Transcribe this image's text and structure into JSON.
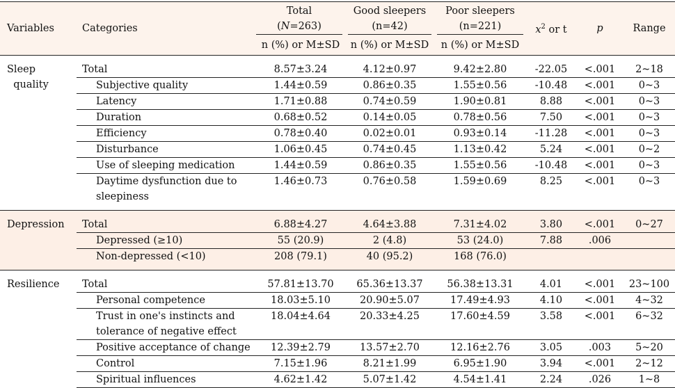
{
  "header": {
    "variables": "Variables",
    "categories": "Categories",
    "total": "Total",
    "total_n": "(N=263)",
    "good": "Good sleepers",
    "good_n": "(n=42)",
    "poor": "Poor sleepers",
    "poor_n": "(n=221)",
    "stat": "x2 or t",
    "p": "p",
    "range": "Range",
    "sub": "n (%) or M±SD"
  },
  "groups": [
    {
      "variable": "Sleep quality",
      "rows": [
        {
          "category": "Total",
          "total": "8.57±3.24",
          "good": "4.12±0.97",
          "poor": "9.42±2.80",
          "stat": "-22.05",
          "p": "<.001",
          "range": "2~18"
        },
        {
          "category": "Subjective quality",
          "total": "1.44±0.59",
          "good": "0.86±0.35",
          "poor": "1.55±0.56",
          "stat": "-10.48",
          "p": "<.001",
          "range": "0~3"
        },
        {
          "category": "Latency",
          "total": "1.71±0.88",
          "good": "0.74±0.59",
          "poor": "1.90±0.81",
          "stat": "8.88",
          "p": "<.001",
          "range": "0~3"
        },
        {
          "category": "Duration",
          "total": "0.68±0.52",
          "good": "0.14±0.05",
          "poor": "0.78±0.56",
          "stat": "7.50",
          "p": "<.001",
          "range": "0~3"
        },
        {
          "category": "Efficiency",
          "total": "0.78±0.40",
          "good": "0.02±0.01",
          "poor": "0.93±0.14",
          "stat": "-11.28",
          "p": "<.001",
          "range": "0~3"
        },
        {
          "category": "Disturbance",
          "total": "1.06±0.45",
          "good": "0.74±0.45",
          "poor": "1.13±0.42",
          "stat": "5.24",
          "p": "<.001",
          "range": "0~2"
        },
        {
          "category": "Use of sleeping medication",
          "total": "1.44±0.59",
          "good": "0.86±0.35",
          "poor": "1.55±0.56",
          "stat": "-10.48",
          "p": "<.001",
          "range": "0~3"
        },
        {
          "category": "Daytime dysfunction due to sleepiness",
          "total": "1.46±0.73",
          "good": "0.76±0.58",
          "poor": "1.59±0.69",
          "stat": "8.25",
          "p": "<.001",
          "range": "0~3"
        }
      ]
    },
    {
      "variable": "Depression",
      "rows": [
        {
          "category": "Total",
          "total": "6.88±4.27",
          "good": "4.64±3.88",
          "poor": "7.31±4.02",
          "stat": "3.80",
          "p": "<.001",
          "range": "0~27"
        },
        {
          "category": "Depressed (≥10)",
          "total": "55 (20.9)",
          "good": "2 (4.8)",
          "poor": "53 (24.0)",
          "stat": "7.88",
          "p": ".006",
          "range": ""
        },
        {
          "category": "Non-depressed (<10)",
          "total": "208 (79.1)",
          "good": "40 (95.2)",
          "poor": "168 (76.0)",
          "stat": "",
          "p": "",
          "range": ""
        }
      ]
    },
    {
      "variable": "Resilience",
      "rows": [
        {
          "category": "Total",
          "total": "57.81±13.70",
          "good": "65.36±13.37",
          "poor": "56.38±13.31",
          "stat": "4.01",
          "p": "<.001",
          "range": "23~100"
        },
        {
          "category": "Personal competence",
          "total": "18.03±5.10",
          "good": "20.90±5.07",
          "poor": "17.49±4.93",
          "stat": "4.10",
          "p": "<.001",
          "range": "4~32"
        },
        {
          "category": "Trust in one's instincts and tolerance of negative effect",
          "total": "18.04±4.64",
          "good": "20.33±4.25",
          "poor": "17.60±4.59",
          "stat": "3.58",
          "p": "<.001",
          "range": "6~32"
        },
        {
          "category": "Positive acceptance of change",
          "total": "12.39±2.79",
          "good": "13.57±2.70",
          "poor": "12.16±2.76",
          "stat": "3.05",
          "p": ".003",
          "range": "5~20"
        },
        {
          "category": "Control",
          "total": "7.15±1.96",
          "good": "8.21±1.99",
          "poor": "6.95±1.90",
          "stat": "3.94",
          "p": "<.001",
          "range": "2~12"
        },
        {
          "category": "Spiritual influences",
          "total": "4.62±1.42",
          "good": "5.07±1.42",
          "poor": "4.54±1.41",
          "stat": "2.24",
          "p": ".026",
          "range": "1~8"
        }
      ]
    }
  ]
}
